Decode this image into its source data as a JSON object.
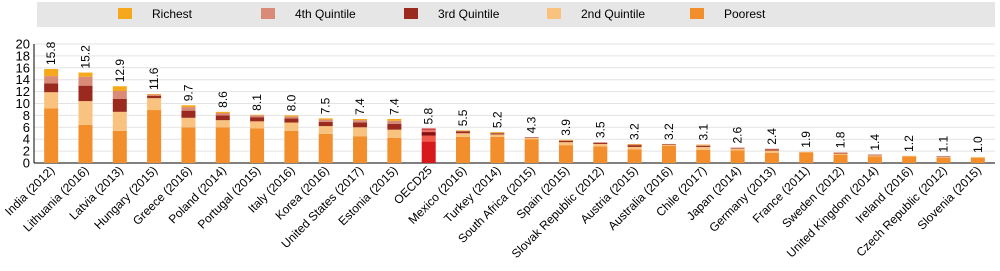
{
  "chart_data": {
    "type": "stacked-bar",
    "categories": [
      "India (2012)",
      "Lithuania (2016)",
      "Latvia (2013)",
      "Hungary (2015)",
      "Greece (2016)",
      "Poland (2014)",
      "Portugal (2015)",
      "Italy (2016)",
      "Korea (2016)",
      "United States (2017)",
      "Estonia (2015)",
      "OECD25",
      "Mexico (2016)",
      "Turkey (2014)",
      "South Africa (2015)",
      "Spain (2015)",
      "Slovak Republic (2012)",
      "Austria (2015)",
      "Australia (2016)",
      "Chile (2017)",
      "Japan (2014)",
      "Germany (2013)",
      "France (2011)",
      "Sweden (2012)",
      "United Kingdom (2014)",
      "Ireland (2016)",
      "Czech Republic (2012)",
      "Slovenia (2015)"
    ],
    "totals": [
      15.8,
      15.2,
      12.9,
      11.6,
      9.7,
      8.6,
      8.1,
      8.0,
      7.5,
      7.4,
      7.4,
      5.8,
      5.5,
      5.2,
      4.3,
      3.9,
      3.5,
      3.2,
      3.2,
      3.1,
      2.6,
      2.4,
      1.9,
      1.8,
      1.4,
      1.2,
      1.1,
      1.0
    ],
    "totals_labels": [
      "15.8",
      "15.2",
      "12.9",
      "11.6",
      "9.7",
      "8.6",
      "8.1",
      "8.0",
      "7.5",
      "7.4",
      "7.4",
      "5.8",
      "5.5",
      "5.2",
      "4.3",
      "3.9",
      "3.5",
      "3.2",
      "3.2",
      "3.1",
      "2.6",
      "2.4",
      "1.9",
      "1.8",
      "1.4",
      "1.2",
      "1.1",
      "1.0"
    ],
    "series": [
      {
        "name": "Poorest",
        "color": "#f28e2b",
        "highlight_color": "#d7191c",
        "values": [
          9.2,
          6.4,
          5.4,
          8.9,
          6.0,
          6.0,
          5.8,
          5.4,
          4.9,
          4.5,
          4.2,
          3.6,
          4.4,
          4.4,
          4.0,
          3.0,
          2.8,
          2.3,
          2.9,
          2.2,
          2.1,
          1.7,
          1.8,
          1.4,
          1.1,
          1.1,
          0.9,
          0.9
        ]
      },
      {
        "name": "2nd Quintile",
        "color": "#f9c27e",
        "highlight_color": "#f15a4a",
        "values": [
          2.7,
          4.0,
          3.2,
          2.0,
          1.6,
          1.2,
          1.2,
          1.4,
          1.3,
          1.5,
          1.4,
          1.0,
          0.6,
          0.4,
          0.2,
          0.5,
          0.4,
          0.4,
          0.2,
          0.5,
          0.3,
          0.4,
          0.1,
          0.2,
          0.2,
          0.1,
          0.1,
          0.1
        ]
      },
      {
        "name": "3rd Quintile",
        "color": "#9b2a1e",
        "highlight_color": "#8c0d0d",
        "values": [
          1.5,
          2.6,
          2.2,
          0.4,
          1.2,
          0.8,
          0.7,
          0.7,
          0.7,
          0.8,
          1.0,
          0.6,
          0.3,
          0.2,
          0.1,
          0.2,
          0.2,
          0.3,
          0.1,
          0.2,
          0.1,
          0.2,
          0,
          0.1,
          0.1,
          0,
          0.1,
          0
        ]
      },
      {
        "name": "4th Quintile",
        "color": "#d98b78",
        "highlight_color": "#e8736b",
        "values": [
          1.2,
          1.5,
          1.3,
          0.2,
          0.6,
          0.4,
          0.3,
          0.3,
          0.4,
          0.4,
          0.5,
          0.4,
          0.1,
          0.1,
          0,
          0.1,
          0.1,
          0.1,
          0,
          0.1,
          0.1,
          0.1,
          0,
          0.1,
          0,
          0,
          0,
          0
        ]
      },
      {
        "name": "Richest",
        "color": "#f5a81c",
        "highlight_color": "#c4161c",
        "values": [
          1.2,
          0.7,
          0.8,
          0.1,
          0.3,
          0.2,
          0.1,
          0.2,
          0.2,
          0.2,
          0.3,
          0.2,
          0.1,
          0.1,
          0,
          0.1,
          0,
          0.1,
          0,
          0.1,
          0,
          0,
          0,
          0,
          0,
          0,
          0,
          0
        ]
      }
    ],
    "highlight": "OECD25",
    "ylim": [
      0,
      20
    ],
    "yticks": [
      0,
      2,
      4,
      6,
      8,
      10,
      12,
      14,
      16,
      18,
      20
    ],
    "grid": true
  }
}
